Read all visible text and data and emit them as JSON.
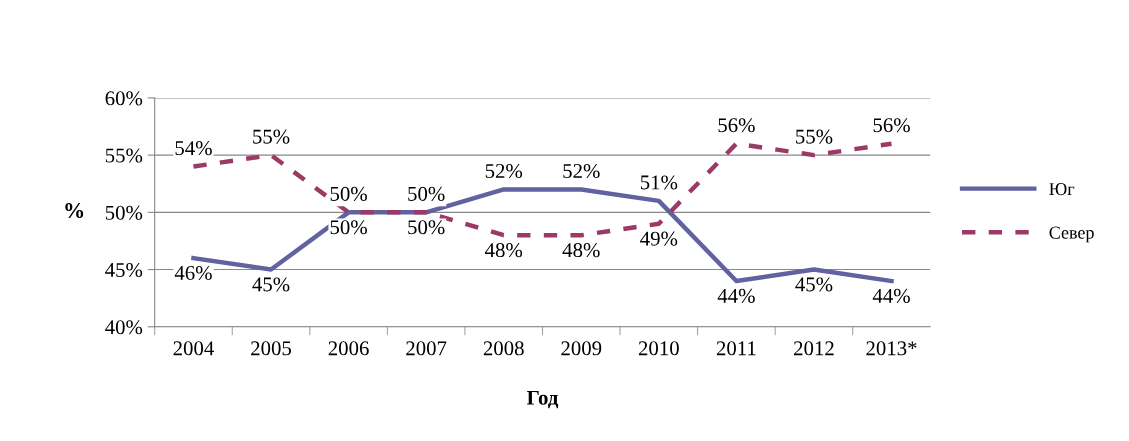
{
  "chart_data": {
    "type": "line",
    "xlabel": "Год",
    "ylabel": "%",
    "categories": [
      "2004",
      "2005",
      "2006",
      "2007",
      "2008",
      "2009",
      "2010",
      "2011",
      "2012",
      "2013*"
    ],
    "series": [
      {
        "name": "Юг",
        "color": "#6262a0",
        "line_style": "solid",
        "values": [
          46,
          45,
          50,
          50,
          52,
          52,
          51,
          44,
          45,
          44
        ],
        "value_labels": [
          "46%",
          "45%",
          "50%",
          "50%",
          "52%",
          "52%",
          "51%",
          "44%",
          "45%",
          "44%"
        ]
      },
      {
        "name": "Север",
        "color": "#9b3a66",
        "line_style": "dashed",
        "values": [
          54,
          55,
          50,
          50,
          48,
          48,
          49,
          56,
          55,
          56
        ],
        "value_labels": [
          "54%",
          "55%",
          "50%",
          "50%",
          "48%",
          "48%",
          "49%",
          "56%",
          "55%",
          "56%"
        ]
      }
    ],
    "ylim": [
      40,
      60
    ],
    "yticks": [
      {
        "value": 40,
        "label": "40%"
      },
      {
        "value": 45,
        "label": "45%"
      },
      {
        "value": 50,
        "label": "50%"
      },
      {
        "value": 55,
        "label": "55%"
      },
      {
        "value": 60,
        "label": "60%"
      }
    ],
    "grid": "y",
    "legend": "right",
    "marker": "none"
  }
}
